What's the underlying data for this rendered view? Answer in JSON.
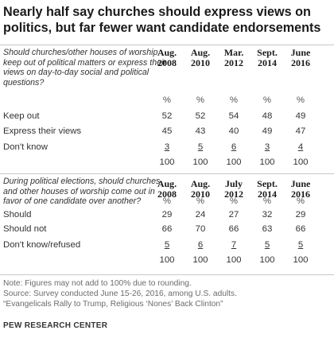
{
  "title": "Nearly half say churches should express views on politics, but far fewer want candidate endorsements",
  "chart_data": [
    {
      "type": "table",
      "question": "Should churches/other houses of worship keep out of political matters or express their views on day-to-day social and political questions?",
      "columns": [
        {
          "month": "Aug.",
          "year": "2008"
        },
        {
          "month": "Aug.",
          "year": "2010"
        },
        {
          "month": "Mar.",
          "year": "2012"
        },
        {
          "month": "Sept.",
          "year": "2014"
        },
        {
          "month": "June",
          "year": "2016"
        }
      ],
      "unit_row": [
        "%",
        "%",
        "%",
        "%",
        "%"
      ],
      "rows": [
        {
          "label": "Keep out",
          "values": [
            "52",
            "52",
            "54",
            "48",
            "49"
          ]
        },
        {
          "label": "Express their views",
          "values": [
            "45",
            "43",
            "40",
            "49",
            "47"
          ]
        },
        {
          "label": "Don't know",
          "values": [
            "3",
            "5",
            "6",
            "3",
            "4"
          ]
        },
        {
          "label": "",
          "values": [
            "100",
            "100",
            "100",
            "100",
            "100"
          ]
        }
      ]
    },
    {
      "type": "table",
      "question": "During political elections, should churches and other houses of worship come out in favor of one candidate over another?",
      "columns": [
        {
          "month": "Aug.",
          "year": "2008"
        },
        {
          "month": "Aug.",
          "year": "2010"
        },
        {
          "month": "July",
          "year": "2012"
        },
        {
          "month": "Sept.",
          "year": "2014"
        },
        {
          "month": "June",
          "year": "2016"
        }
      ],
      "unit_row": [
        "%",
        "%",
        "%",
        "%",
        "%"
      ],
      "rows": [
        {
          "label": "Should",
          "values": [
            "29",
            "24",
            "27",
            "32",
            "29"
          ]
        },
        {
          "label": "Should not",
          "values": [
            "66",
            "70",
            "66",
            "63",
            "66"
          ]
        },
        {
          "label": "Don't know/refused",
          "values": [
            "5",
            "6",
            "7",
            "5",
            "5"
          ]
        },
        {
          "label": "",
          "values": [
            "100",
            "100",
            "100",
            "100",
            "100"
          ]
        }
      ]
    }
  ],
  "notes": [
    "Note: Figures may not add to 100% due to rounding.",
    "Source: Survey conducted June 15-26, 2016, among U.S. adults.",
    "“Evangelicals Rally to Trump, Religious ‘Nones’ Back Clinton”"
  ],
  "source": "PEW RESEARCH CENTER"
}
